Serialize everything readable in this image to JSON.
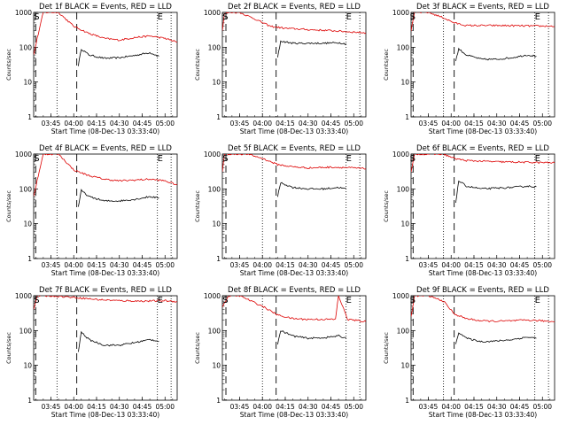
{
  "chart_data": [
    {
      "type": "line",
      "title": "Det 1f BLACK = Events, RED = LLD",
      "xlabel": "Start Time (08-Dec-13 03:33:40)",
      "ylabel": "Counts/sec",
      "x_ticks": [
        "03:45",
        "04:00",
        "04:15",
        "04:30",
        "04:45",
        "05:00"
      ],
      "y_ticks": [
        "1",
        "10",
        "100",
        "1000"
      ],
      "yscale": "log",
      "ylim": [
        1,
        1000
      ],
      "xlim": [
        "03:33:40",
        "05:08:00"
      ],
      "markers": {
        "S": "03:35",
        "E": "04:55"
      },
      "dashed_lines": [
        "03:35",
        "04:02"
      ],
      "dotted_lines": [
        "03:49",
        "04:55",
        "05:04"
      ],
      "series": [
        {
          "name": "BLACK = Events",
          "color": "#000000",
          "x": [
            "04:03",
            "04:05",
            "04:10",
            "04:20",
            "04:30",
            "04:40",
            "04:50",
            "04:56"
          ],
          "values": [
            30,
            90,
            60,
            48,
            50,
            58,
            70,
            55
          ]
        },
        {
          "name": "RED = LLD",
          "color": "#dd0000",
          "x": [
            "03:33:40",
            "03:36",
            "03:40",
            "03:50",
            "04:00",
            "04:10",
            "04:20",
            "04:30",
            "04:40",
            "04:50",
            "05:00",
            "05:08"
          ],
          "values": [
            60,
            180,
            1000,
            1000,
            400,
            250,
            180,
            160,
            190,
            210,
            180,
            140
          ]
        }
      ]
    },
    {
      "type": "line",
      "title": "Det 2f BLACK = Events, RED = LLD",
      "xlabel": "Start Time (08-Dec-13 03:33:40)",
      "ylabel": "Counts/sec",
      "x_ticks": [
        "03:45",
        "04:00",
        "04:15",
        "04:30",
        "04:45",
        "05:00"
      ],
      "y_ticks": [
        "1",
        "10",
        "100",
        "1000"
      ],
      "yscale": "log",
      "ylim": [
        1,
        1000
      ],
      "xlim": [
        "03:33:40",
        "05:08:00"
      ],
      "markers": {
        "S": "03:35",
        "E": "04:55"
      },
      "dashed_lines": [
        "03:36",
        "04:09"
      ],
      "dotted_lines": [
        "04:00",
        "04:55",
        "05:04"
      ],
      "series": [
        {
          "name": "BLACK = Events",
          "color": "#000000",
          "x": [
            "04:10",
            "04:12",
            "04:20",
            "04:30",
            "04:40",
            "04:50",
            "04:55"
          ],
          "values": [
            50,
            150,
            130,
            130,
            130,
            135,
            125
          ]
        },
        {
          "name": "RED = LLD",
          "color": "#dd0000",
          "x": [
            "03:33:40",
            "03:35",
            "03:38",
            "03:45",
            "03:55",
            "04:05",
            "04:15",
            "04:30",
            "04:45",
            "04:55",
            "05:08"
          ],
          "values": [
            300,
            900,
            1000,
            1000,
            650,
            400,
            350,
            320,
            300,
            280,
            260
          ]
        }
      ]
    },
    {
      "type": "line",
      "title": "Det 3f BLACK = Events, RED = LLD",
      "xlabel": "Start Time (08-Dec-13 03:33:40)",
      "ylabel": "Counts/sec",
      "x_ticks": [
        "03:45",
        "04:00",
        "04:15",
        "04:30",
        "04:45",
        "05:00"
      ],
      "y_ticks": [
        "1",
        "10",
        "100",
        "1000"
      ],
      "yscale": "log",
      "ylim": [
        1,
        1000
      ],
      "xlim": [
        "03:33:40",
        "05:08:00"
      ],
      "markers": {
        "S": "03:34",
        "E": "04:55"
      },
      "dashed_lines": [
        "03:35",
        "04:02"
      ],
      "dotted_lines": [
        "03:55",
        "04:55",
        "05:04"
      ],
      "series": [
        {
          "name": "BLACK = Events",
          "color": "#000000",
          "x": [
            "04:03",
            "04:05",
            "04:10",
            "04:20",
            "04:30",
            "04:40",
            "04:50",
            "04:56"
          ],
          "values": [
            40,
            90,
            60,
            45,
            45,
            50,
            60,
            55
          ]
        },
        {
          "name": "RED = LLD",
          "color": "#dd0000",
          "x": [
            "03:33:40",
            "03:36",
            "03:45",
            "03:55",
            "04:02",
            "04:10",
            "04:30",
            "04:50",
            "05:08"
          ],
          "values": [
            300,
            1000,
            1000,
            700,
            500,
            420,
            420,
            410,
            400
          ]
        }
      ]
    },
    {
      "type": "line",
      "title": "Det 4f BLACK = Events, RED = LLD",
      "xlabel": "Start Time (08-Dec-13 03:33:40)",
      "ylabel": "Counts/sec",
      "x_ticks": [
        "03:45",
        "04:00",
        "04:15",
        "04:30",
        "04:45",
        "05:00"
      ],
      "y_ticks": [
        "1",
        "10",
        "100",
        "1000"
      ],
      "yscale": "log",
      "ylim": [
        1,
        1000
      ],
      "xlim": [
        "03:33:40",
        "05:08:00"
      ],
      "markers": {
        "S": "03:35",
        "E": "04:55"
      },
      "dashed_lines": [
        "03:35",
        "04:02"
      ],
      "dotted_lines": [
        "03:49",
        "04:55",
        "05:04"
      ],
      "series": [
        {
          "name": "BLACK = Events",
          "color": "#000000",
          "x": [
            "04:03",
            "04:05",
            "04:10",
            "04:20",
            "04:30",
            "04:40",
            "04:50",
            "04:56"
          ],
          "values": [
            30,
            90,
            60,
            45,
            45,
            50,
            60,
            55
          ]
        },
        {
          "name": "RED = LLD",
          "color": "#dd0000",
          "x": [
            "03:33:40",
            "03:36",
            "03:40",
            "03:50",
            "04:00",
            "04:10",
            "04:20",
            "04:30",
            "04:40",
            "04:50",
            "05:00",
            "05:08"
          ],
          "values": [
            60,
            180,
            1000,
            1000,
            350,
            240,
            190,
            170,
            180,
            190,
            170,
            130
          ]
        }
      ]
    },
    {
      "type": "line",
      "title": "Det 5f BLACK = Events, RED = LLD",
      "xlabel": "Start Time (08-Dec-13 03:33:40)",
      "ylabel": "Counts/sec",
      "x_ticks": [
        "03:45",
        "04:00",
        "04:15",
        "04:30",
        "04:45",
        "05:00"
      ],
      "y_ticks": [
        "1",
        "10",
        "100",
        "1000"
      ],
      "yscale": "log",
      "ylim": [
        1,
        1000
      ],
      "xlim": [
        "03:33:40",
        "05:08:00"
      ],
      "markers": {
        "S": "03:35",
        "E": "04:55"
      },
      "dashed_lines": [
        "03:36",
        "04:09"
      ],
      "dotted_lines": [
        "04:00",
        "04:55",
        "05:04"
      ],
      "series": [
        {
          "name": "BLACK = Events",
          "color": "#000000",
          "x": [
            "04:10",
            "04:12",
            "04:20",
            "04:30",
            "04:40",
            "04:50",
            "04:55"
          ],
          "values": [
            60,
            150,
            110,
            100,
            100,
            110,
            100
          ]
        },
        {
          "name": "RED = LLD",
          "color": "#dd0000",
          "x": [
            "03:33:40",
            "03:35",
            "03:40",
            "03:50",
            "04:00",
            "04:10",
            "04:20",
            "04:30",
            "04:45",
            "04:55",
            "05:08"
          ],
          "values": [
            300,
            1000,
            1000,
            1000,
            750,
            500,
            430,
            400,
            420,
            410,
            380
          ]
        }
      ]
    },
    {
      "type": "line",
      "title": "Det 6f BLACK = Events, RED = LLD",
      "xlabel": "Start Time (08-Dec-13 03:33:40)",
      "ylabel": "Counts/sec",
      "x_ticks": [
        "03:45",
        "04:00",
        "04:15",
        "04:30",
        "04:45",
        "05:00"
      ],
      "y_ticks": [
        "1",
        "10",
        "100",
        "1000"
      ],
      "yscale": "log",
      "ylim": [
        1,
        1000
      ],
      "xlim": [
        "03:33:40",
        "05:08:00"
      ],
      "markers": {
        "S": "03:34",
        "E": "04:55"
      },
      "dashed_lines": [
        "03:35",
        "04:02"
      ],
      "dotted_lines": [
        "03:55",
        "04:55",
        "05:04"
      ],
      "series": [
        {
          "name": "BLACK = Events",
          "color": "#000000",
          "x": [
            "04:03",
            "04:05",
            "04:10",
            "04:20",
            "04:30",
            "04:40",
            "04:50",
            "04:56"
          ],
          "values": [
            40,
            170,
            120,
            100,
            105,
            110,
            120,
            115
          ]
        },
        {
          "name": "RED = LLD",
          "color": "#dd0000",
          "x": [
            "03:33:40",
            "03:36",
            "03:45",
            "03:55",
            "04:02",
            "04:10",
            "04:30",
            "04:50",
            "05:08"
          ],
          "values": [
            300,
            1000,
            1000,
            1000,
            750,
            650,
            600,
            580,
            560
          ]
        }
      ]
    },
    {
      "type": "line",
      "title": "Det 7f BLACK = Events, RED = LLD",
      "xlabel": "Start Time (08-Dec-13 03:33:40)",
      "ylabel": "Counts/sec",
      "x_ticks": [
        "03:45",
        "04:00",
        "04:15",
        "04:30",
        "04:45",
        "05:00"
      ],
      "y_ticks": [
        "1",
        "10",
        "100",
        "1000"
      ],
      "yscale": "log",
      "ylim": [
        1,
        1000
      ],
      "xlim": [
        "03:33:40",
        "05:08:00"
      ],
      "markers": {
        "S": "03:35",
        "E": "04:55"
      },
      "dashed_lines": [
        "03:35",
        "04:02"
      ],
      "dotted_lines": [
        "03:49",
        "04:55",
        "05:04"
      ],
      "series": [
        {
          "name": "BLACK = Events",
          "color": "#000000",
          "x": [
            "04:03",
            "04:05",
            "04:10",
            "04:20",
            "04:30",
            "04:40",
            "04:50",
            "04:56"
          ],
          "values": [
            25,
            90,
            55,
            38,
            38,
            45,
            55,
            50
          ]
        },
        {
          "name": "RED = LLD",
          "color": "#dd0000",
          "x": [
            "03:33:40",
            "03:36",
            "03:45",
            "04:00",
            "04:15",
            "04:30",
            "04:45",
            "05:00",
            "05:08"
          ],
          "values": [
            400,
            1000,
            1000,
            900,
            780,
            720,
            700,
            720,
            680
          ]
        }
      ]
    },
    {
      "type": "line",
      "title": "Det 8f BLACK = Events, RED = LLD",
      "xlabel": "Start Time (08-Dec-13 03:33:40)",
      "ylabel": "Counts/sec",
      "x_ticks": [
        "03:45",
        "04:00",
        "04:15",
        "04:30",
        "04:45",
        "05:00"
      ],
      "y_ticks": [
        "1",
        "10",
        "100",
        "1000"
      ],
      "yscale": "log",
      "ylim": [
        1,
        1000
      ],
      "xlim": [
        "03:33:40",
        "05:08:00"
      ],
      "markers": {
        "S": "03:35",
        "E": "04:55"
      },
      "dashed_lines": [
        "03:36",
        "04:09"
      ],
      "dotted_lines": [
        "04:00",
        "04:55",
        "05:04"
      ],
      "series": [
        {
          "name": "BLACK = Events",
          "color": "#000000",
          "x": [
            "04:10",
            "04:12",
            "04:20",
            "04:30",
            "04:40",
            "04:50",
            "04:55"
          ],
          "values": [
            40,
            100,
            70,
            60,
            62,
            70,
            60
          ]
        },
        {
          "name": "RED = LLD",
          "color": "#dd0000",
          "x": [
            "03:33:40",
            "03:38",
            "03:45",
            "04:00",
            "04:10",
            "04:20",
            "04:30",
            "04:40",
            "04:48",
            "04:50",
            "04:56",
            "05:00",
            "05:08"
          ],
          "values": [
            500,
            1000,
            1000,
            500,
            280,
            220,
            210,
            210,
            210,
            1000,
            210,
            200,
            180
          ]
        }
      ]
    },
    {
      "type": "line",
      "title": "Det 9f BLACK = Events, RED = LLD",
      "xlabel": "Start Time (08-Dec-13 03:33:40)",
      "ylabel": "Counts/sec",
      "x_ticks": [
        "03:45",
        "04:00",
        "04:15",
        "04:30",
        "04:45",
        "05:00"
      ],
      "y_ticks": [
        "1",
        "10",
        "100",
        "1000"
      ],
      "yscale": "log",
      "ylim": [
        1,
        1000
      ],
      "xlim": [
        "03:33:40",
        "05:08:00"
      ],
      "markers": {
        "S": "03:34",
        "E": "04:55"
      },
      "dashed_lines": [
        "03:35",
        "04:02"
      ],
      "dotted_lines": [
        "03:55",
        "04:55",
        "05:04"
      ],
      "series": [
        {
          "name": "BLACK = Events",
          "color": "#000000",
          "x": [
            "04:03",
            "04:05",
            "04:10",
            "04:20",
            "04:30",
            "04:40",
            "04:50",
            "04:56"
          ],
          "values": [
            40,
            90,
            60,
            48,
            50,
            55,
            65,
            60
          ]
        },
        {
          "name": "RED = LLD",
          "color": "#dd0000",
          "x": [
            "03:33:40",
            "03:36",
            "03:45",
            "03:55",
            "04:02",
            "04:10",
            "04:20",
            "04:30",
            "04:40",
            "04:50",
            "05:00",
            "05:08"
          ],
          "values": [
            250,
            1000,
            1000,
            700,
            300,
            220,
            190,
            185,
            190,
            200,
            190,
            180
          ]
        }
      ]
    }
  ]
}
